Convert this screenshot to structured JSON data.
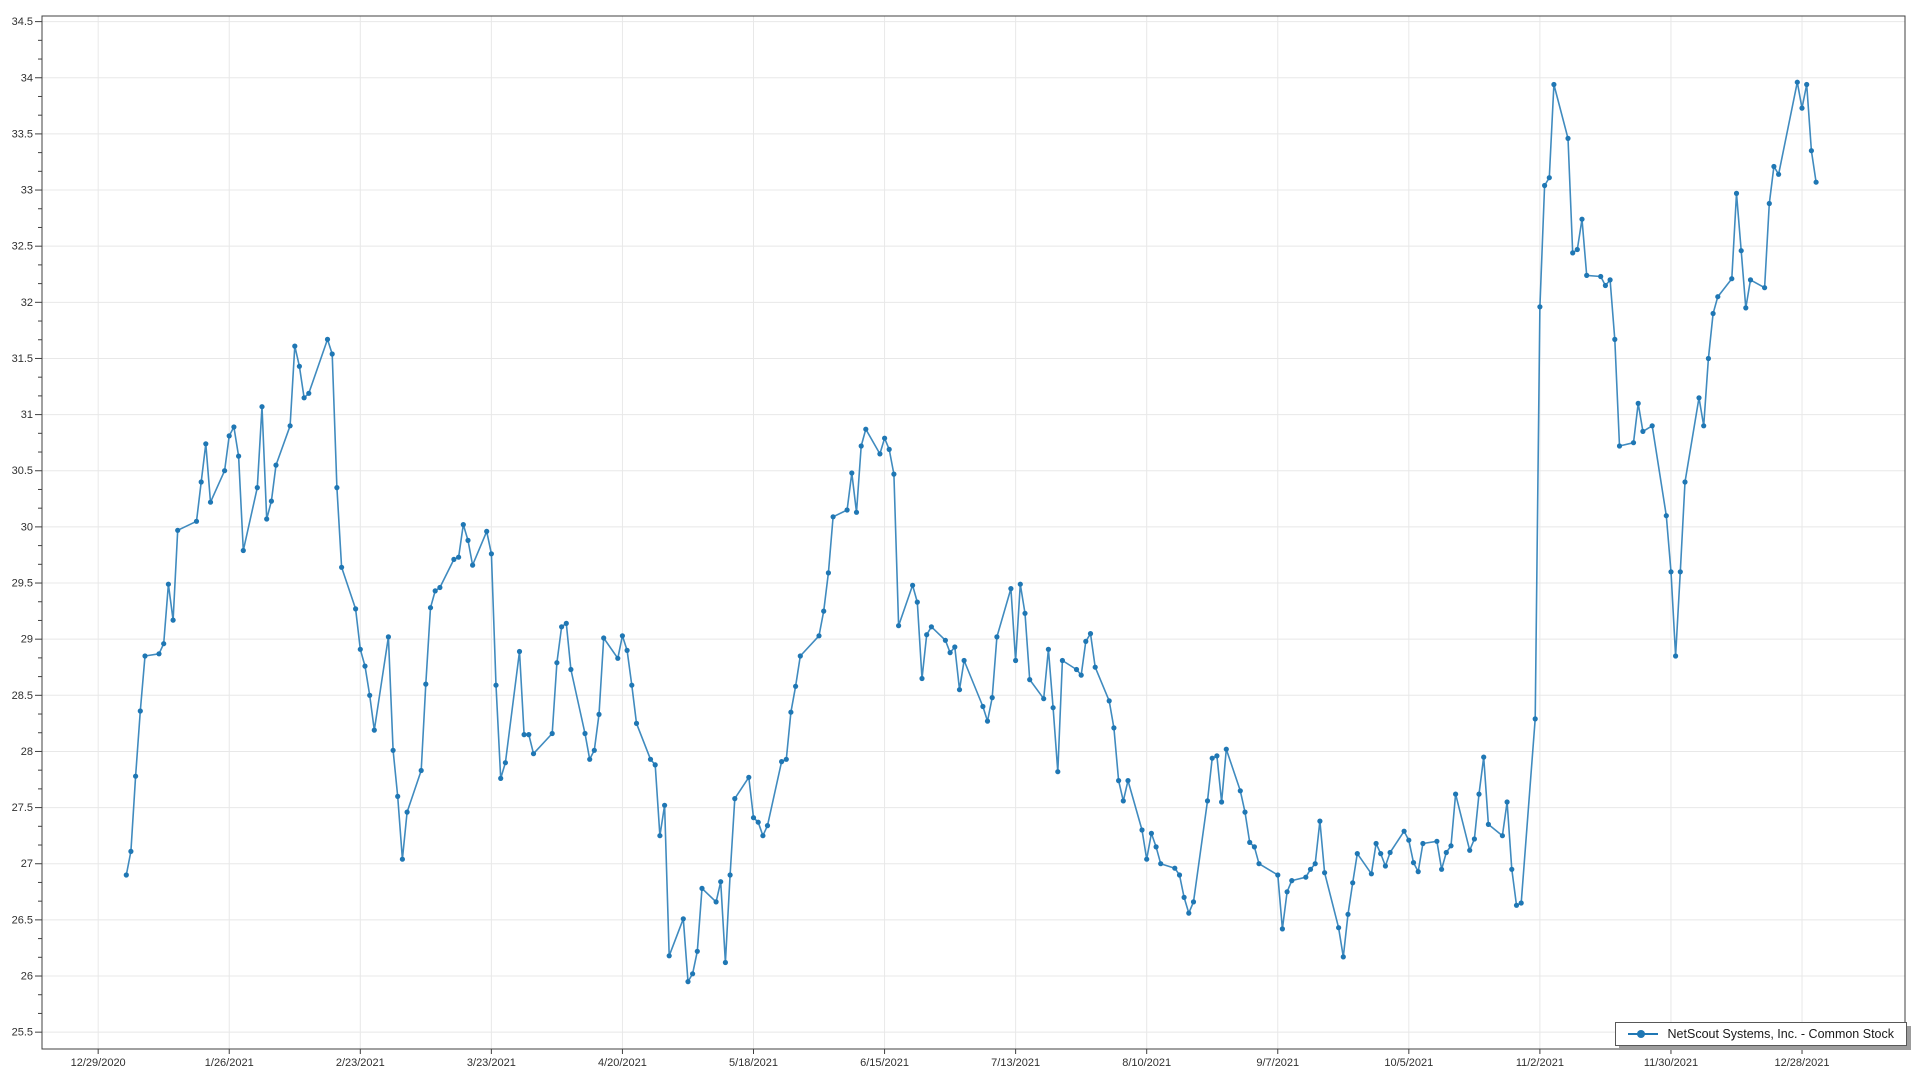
{
  "chart_data": {
    "type": "line",
    "title": "",
    "xlabel": "",
    "ylabel": "",
    "grid": true,
    "legend": {
      "label": "NetScout Systems, Inc. - Common Stock",
      "position": "bottom-right"
    },
    "y_axis": {
      "min": 25.35,
      "max": 34.55,
      "tick_interval": 0.5,
      "tick_values": [
        25.5,
        26,
        26.5,
        27,
        27.5,
        28,
        28.5,
        29,
        29.5,
        30,
        30.5,
        31,
        31.5,
        32,
        32.5,
        33,
        33.5,
        34,
        34.5
      ],
      "tick_labels": [
        "25.5",
        "26",
        "26.5",
        "27",
        "27.5",
        "28",
        "28.5",
        "29",
        "29.5",
        "30",
        "30.5",
        "31",
        "31.5",
        "32",
        "32.5",
        "33",
        "33.5",
        "34",
        "34.5"
      ]
    },
    "x_axis": {
      "start_date": "2020-12-17",
      "end_date": "2022-01-19",
      "tick_dates": [
        "2020-12-29",
        "2021-01-26",
        "2021-02-23",
        "2021-03-23",
        "2021-04-20",
        "2021-05-18",
        "2021-06-15",
        "2021-07-13",
        "2021-08-10",
        "2021-09-07",
        "2021-10-05",
        "2021-11-02",
        "2021-11-30",
        "2021-12-28"
      ],
      "tick_labels": [
        "12/29/2020",
        "1/26/2021",
        "2/23/2021",
        "3/23/2021",
        "4/20/2021",
        "5/18/2021",
        "6/15/2021",
        "7/13/2021",
        "8/10/2021",
        "9/7/2021",
        "10/5/2021",
        "11/2/2021",
        "11/30/2021",
        "12/28/2021"
      ]
    },
    "series": [
      {
        "name": "NetScout Systems, Inc. - Common Stock",
        "color": "#1f77b4",
        "marker": "circle",
        "dates": [
          "2021-01-04",
          "2021-01-05",
          "2021-01-06",
          "2021-01-07",
          "2021-01-08",
          "2021-01-11",
          "2021-01-12",
          "2021-01-13",
          "2021-01-14",
          "2021-01-15",
          "2021-01-19",
          "2021-01-20",
          "2021-01-21",
          "2021-01-22",
          "2021-01-25",
          "2021-01-26",
          "2021-01-27",
          "2021-01-28",
          "2021-01-29",
          "2021-02-01",
          "2021-02-02",
          "2021-02-03",
          "2021-02-04",
          "2021-02-05",
          "2021-02-08",
          "2021-02-09",
          "2021-02-10",
          "2021-02-11",
          "2021-02-12",
          "2021-02-16",
          "2021-02-17",
          "2021-02-18",
          "2021-02-19",
          "2021-02-22",
          "2021-02-23",
          "2021-02-24",
          "2021-02-25",
          "2021-02-26",
          "2021-03-01",
          "2021-03-02",
          "2021-03-03",
          "2021-03-04",
          "2021-03-05",
          "2021-03-08",
          "2021-03-09",
          "2021-03-10",
          "2021-03-11",
          "2021-03-12",
          "2021-03-15",
          "2021-03-16",
          "2021-03-17",
          "2021-03-18",
          "2021-03-19",
          "2021-03-22",
          "2021-03-23",
          "2021-03-24",
          "2021-03-25",
          "2021-03-26",
          "2021-03-29",
          "2021-03-30",
          "2021-03-31",
          "2021-04-01",
          "2021-04-05",
          "2021-04-06",
          "2021-04-07",
          "2021-04-08",
          "2021-04-09",
          "2021-04-12",
          "2021-04-13",
          "2021-04-14",
          "2021-04-15",
          "2021-04-16",
          "2021-04-19",
          "2021-04-20",
          "2021-04-21",
          "2021-04-22",
          "2021-04-23",
          "2021-04-26",
          "2021-04-27",
          "2021-04-28",
          "2021-04-29",
          "2021-04-30",
          "2021-05-03",
          "2021-05-04",
          "2021-05-05",
          "2021-05-06",
          "2021-05-07",
          "2021-05-10",
          "2021-05-11",
          "2021-05-12",
          "2021-05-13",
          "2021-05-14",
          "2021-05-17",
          "2021-05-18",
          "2021-05-19",
          "2021-05-20",
          "2021-05-21",
          "2021-05-24",
          "2021-05-25",
          "2021-05-26",
          "2021-05-27",
          "2021-05-28",
          "2021-06-01",
          "2021-06-02",
          "2021-06-03",
          "2021-06-04",
          "2021-06-07",
          "2021-06-08",
          "2021-06-09",
          "2021-06-10",
          "2021-06-11",
          "2021-06-14",
          "2021-06-15",
          "2021-06-16",
          "2021-06-17",
          "2021-06-18",
          "2021-06-21",
          "2021-06-22",
          "2021-06-23",
          "2021-06-24",
          "2021-06-25",
          "2021-06-28",
          "2021-06-29",
          "2021-06-30",
          "2021-07-01",
          "2021-07-02",
          "2021-07-06",
          "2021-07-07",
          "2021-07-08",
          "2021-07-09",
          "2021-07-12",
          "2021-07-13",
          "2021-07-14",
          "2021-07-15",
          "2021-07-16",
          "2021-07-19",
          "2021-07-20",
          "2021-07-21",
          "2021-07-22",
          "2021-07-23",
          "2021-07-26",
          "2021-07-27",
          "2021-07-28",
          "2021-07-29",
          "2021-07-30",
          "2021-08-02",
          "2021-08-03",
          "2021-08-04",
          "2021-08-05",
          "2021-08-06",
          "2021-08-09",
          "2021-08-10",
          "2021-08-11",
          "2021-08-12",
          "2021-08-13",
          "2021-08-16",
          "2021-08-17",
          "2021-08-18",
          "2021-08-19",
          "2021-08-20",
          "2021-08-23",
          "2021-08-24",
          "2021-08-25",
          "2021-08-26",
          "2021-08-27",
          "2021-08-30",
          "2021-08-31",
          "2021-09-01",
          "2021-09-02",
          "2021-09-03",
          "2021-09-07",
          "2021-09-08",
          "2021-09-09",
          "2021-09-10",
          "2021-09-13",
          "2021-09-14",
          "2021-09-15",
          "2021-09-16",
          "2021-09-17",
          "2021-09-20",
          "2021-09-21",
          "2021-09-22",
          "2021-09-23",
          "2021-09-24",
          "2021-09-27",
          "2021-09-28",
          "2021-09-29",
          "2021-09-30",
          "2021-10-01",
          "2021-10-04",
          "2021-10-05",
          "2021-10-06",
          "2021-10-07",
          "2021-10-08",
          "2021-10-11",
          "2021-10-12",
          "2021-10-13",
          "2021-10-14",
          "2021-10-15",
          "2021-10-18",
          "2021-10-19",
          "2021-10-20",
          "2021-10-21",
          "2021-10-22",
          "2021-10-25",
          "2021-10-26",
          "2021-10-27",
          "2021-10-28",
          "2021-10-29",
          "2021-11-01",
          "2021-11-02",
          "2021-11-03",
          "2021-11-04",
          "2021-11-05",
          "2021-11-08",
          "2021-11-09",
          "2021-11-10",
          "2021-11-11",
          "2021-11-12",
          "2021-11-15",
          "2021-11-16",
          "2021-11-17",
          "2021-11-18",
          "2021-11-19",
          "2021-11-22",
          "2021-11-23",
          "2021-11-24",
          "2021-11-26",
          "2021-11-29",
          "2021-11-30",
          "2021-12-01",
          "2021-12-02",
          "2021-12-03",
          "2021-12-06",
          "2021-12-07",
          "2021-12-08",
          "2021-12-09",
          "2021-12-10",
          "2021-12-13",
          "2021-12-14",
          "2021-12-15",
          "2021-12-16",
          "2021-12-17",
          "2021-12-20",
          "2021-12-21",
          "2021-12-22",
          "2021-12-23",
          "2021-12-27",
          "2021-12-28",
          "2021-12-29",
          "2021-12-30",
          "2021-12-31"
        ],
        "values": [
          26.9,
          27.11,
          27.78,
          28.36,
          28.85,
          28.87,
          28.96,
          29.49,
          29.17,
          29.97,
          30.05,
          30.4,
          30.74,
          30.22,
          30.5,
          30.81,
          30.89,
          30.63,
          29.79,
          30.35,
          31.07,
          30.07,
          30.23,
          30.55,
          30.9,
          31.61,
          31.43,
          31.15,
          31.19,
          31.67,
          31.54,
          30.35,
          29.64,
          29.27,
          28.91,
          28.76,
          28.5,
          28.19,
          29.02,
          28.01,
          27.6,
          27.04,
          27.46,
          27.83,
          28.6,
          29.28,
          29.43,
          29.46,
          29.71,
          29.73,
          30.02,
          29.88,
          29.66,
          29.96,
          29.76,
          28.59,
          27.76,
          27.9,
          28.89,
          28.15,
          28.15,
          27.98,
          28.16,
          28.79,
          29.11,
          29.14,
          28.73,
          28.16,
          27.93,
          28.01,
          28.33,
          29.01,
          28.83,
          29.03,
          28.9,
          28.59,
          28.25,
          27.93,
          27.88,
          27.25,
          27.52,
          26.18,
          26.51,
          25.95,
          26.02,
          26.22,
          26.78,
          26.66,
          26.84,
          26.12,
          26.9,
          27.58,
          27.77,
          27.41,
          27.37,
          27.25,
          27.34,
          27.91,
          27.93,
          28.35,
          28.58,
          28.85,
          29.03,
          29.25,
          29.59,
          30.09,
          30.15,
          30.48,
          30.13,
          30.72,
          30.87,
          30.65,
          30.79,
          30.69,
          30.47,
          29.12,
          29.48,
          29.33,
          28.65,
          29.04,
          29.11,
          28.99,
          28.88,
          28.93,
          28.55,
          28.81,
          28.4,
          28.27,
          28.48,
          29.02,
          29.45,
          28.81,
          29.49,
          29.23,
          28.64,
          28.47,
          28.91,
          28.39,
          27.82,
          28.81,
          28.73,
          28.68,
          28.98,
          29.05,
          28.75,
          28.45,
          28.21,
          27.74,
          27.56,
          27.74,
          27.3,
          27.04,
          27.27,
          27.15,
          27.0,
          26.96,
          26.9,
          26.7,
          26.56,
          26.66,
          27.56,
          27.94,
          27.96,
          27.55,
          28.02,
          27.65,
          27.46,
          27.19,
          27.15,
          27.0,
          26.9,
          26.42,
          26.75,
          26.85,
          26.88,
          26.95,
          27.0,
          27.38,
          26.92,
          26.43,
          26.17,
          26.55,
          26.83,
          27.09,
          26.91,
          27.18,
          27.09,
          26.98,
          27.1,
          27.29,
          27.21,
          27.01,
          26.93,
          27.18,
          27.2,
          26.95,
          27.1,
          27.16,
          27.62,
          27.12,
          27.22,
          27.62,
          27.95,
          27.35,
          27.25,
          27.55,
          26.95,
          26.63,
          26.65,
          28.29,
          31.96,
          33.04,
          33.11,
          33.94,
          33.46,
          32.44,
          32.47,
          32.74,
          32.24,
          32.23,
          32.15,
          32.2,
          31.67,
          30.72,
          30.75,
          31.1,
          30.85,
          30.9,
          30.1,
          29.6,
          28.85,
          29.6,
          30.4,
          31.15,
          30.9,
          31.5,
          31.9,
          32.05,
          32.21,
          32.97,
          32.46,
          31.95,
          32.2,
          32.13,
          32.88,
          33.21,
          33.14,
          33.96,
          33.73,
          33.94,
          33.35,
          33.07
        ]
      }
    ]
  },
  "colors": {
    "background": "#ffffff",
    "grid": "#e8e8e8",
    "axis_border": "#404040",
    "tick": "#404040",
    "tick_text": "#303030",
    "line": "#1f77b4",
    "legend_border": "#585858",
    "legend_shadow": "#9c9c9c"
  }
}
